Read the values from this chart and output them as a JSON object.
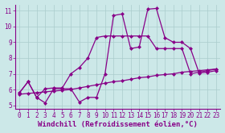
{
  "background_color": "#cce8e8",
  "grid_color": "#aacccc",
  "line_color": "#880088",
  "xlim": [
    -0.5,
    23.5
  ],
  "ylim": [
    4.8,
    11.4
  ],
  "xlabel": "Windchill (Refroidissement éolien,°C)",
  "yticks": [
    5,
    6,
    7,
    8,
    9,
    10,
    11
  ],
  "xticks": [
    0,
    1,
    2,
    3,
    4,
    5,
    6,
    7,
    8,
    9,
    10,
    11,
    12,
    13,
    14,
    15,
    16,
    17,
    18,
    19,
    20,
    21,
    22,
    23
  ],
  "line1_x": [
    0,
    1,
    2,
    3,
    4,
    5,
    6,
    7,
    8,
    9,
    10,
    11,
    12,
    13,
    14,
    15,
    16,
    17,
    18,
    19,
    20,
    21,
    22,
    23
  ],
  "line1_y": [
    5.8,
    6.5,
    5.5,
    5.15,
    6.05,
    6.05,
    6.05,
    5.2,
    5.5,
    5.5,
    7.0,
    10.7,
    10.8,
    8.6,
    8.7,
    11.1,
    11.15,
    9.3,
    9.0,
    9.0,
    8.6,
    7.05,
    7.1,
    7.2
  ],
  "line2_x": [
    0,
    1,
    2,
    3,
    4,
    5,
    6,
    7,
    8,
    9,
    10,
    11,
    12,
    13,
    14,
    15,
    16,
    17,
    18,
    19,
    20,
    21,
    22,
    23
  ],
  "line2_y": [
    5.8,
    6.5,
    5.5,
    6.05,
    6.1,
    6.1,
    7.0,
    7.4,
    8.0,
    9.3,
    9.4,
    9.4,
    9.4,
    9.4,
    9.4,
    9.4,
    8.6,
    8.6,
    8.6,
    8.6,
    7.0,
    7.1,
    7.2,
    7.3
  ],
  "line3_x": [
    0,
    1,
    2,
    3,
    4,
    5,
    6,
    7,
    8,
    9,
    10,
    11,
    12,
    13,
    14,
    15,
    16,
    17,
    18,
    19,
    20,
    21,
    22,
    23
  ],
  "line3_y": [
    5.7,
    5.75,
    5.8,
    5.85,
    5.9,
    5.95,
    6.0,
    6.1,
    6.2,
    6.3,
    6.4,
    6.5,
    6.55,
    6.65,
    6.75,
    6.8,
    6.9,
    6.95,
    7.0,
    7.1,
    7.15,
    7.2,
    7.25,
    7.3
  ],
  "marker": "D",
  "markersize": 2.5,
  "linewidth": 0.9,
  "tick_fontsize": 5.5,
  "xlabel_fontsize": 6.5,
  "tick_color": "#880088",
  "spine_color": "#880088"
}
